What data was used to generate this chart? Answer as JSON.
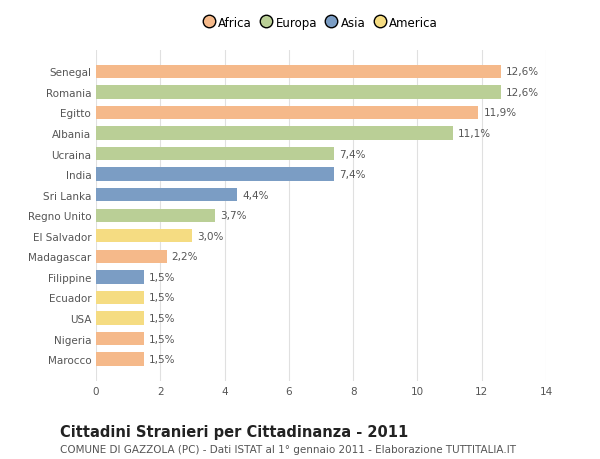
{
  "categories": [
    "Marocco",
    "Nigeria",
    "USA",
    "Ecuador",
    "Filippine",
    "Madagascar",
    "El Salvador",
    "Regno Unito",
    "Sri Lanka",
    "India",
    "Ucraina",
    "Albania",
    "Egitto",
    "Romania",
    "Senegal"
  ],
  "values": [
    1.5,
    1.5,
    1.5,
    1.5,
    1.5,
    2.2,
    3.0,
    3.7,
    4.4,
    7.4,
    7.4,
    11.1,
    11.9,
    12.6,
    12.6
  ],
  "labels": [
    "1,5%",
    "1,5%",
    "1,5%",
    "1,5%",
    "1,5%",
    "2,2%",
    "3,0%",
    "3,7%",
    "4,4%",
    "7,4%",
    "7,4%",
    "11,1%",
    "11,9%",
    "12,6%",
    "12,6%"
  ],
  "continents": [
    "Africa",
    "Africa",
    "America",
    "America",
    "Asia",
    "Africa",
    "America",
    "Europa",
    "Asia",
    "Asia",
    "Europa",
    "Europa",
    "Africa",
    "Europa",
    "Africa"
  ],
  "continent_colors": {
    "Africa": "#F5B98A",
    "Europa": "#BACF96",
    "Asia": "#7B9DC4",
    "America": "#F5DC82"
  },
  "legend_order": [
    "Africa",
    "Europa",
    "Asia",
    "America"
  ],
  "title": "Cittadini Stranieri per Cittadinanza - 2011",
  "subtitle": "COMUNE DI GAZZOLA (PC) - Dati ISTAT al 1° gennaio 2011 - Elaborazione TUTTITALIA.IT",
  "xlim": [
    0,
    14
  ],
  "xticks": [
    0,
    2,
    4,
    6,
    8,
    10,
    12,
    14
  ],
  "background_color": "#ffffff",
  "grid_color": "#e0e0e0",
  "bar_height": 0.65,
  "title_fontsize": 10.5,
  "subtitle_fontsize": 7.5,
  "label_fontsize": 7.5,
  "tick_fontsize": 7.5,
  "legend_fontsize": 8.5
}
